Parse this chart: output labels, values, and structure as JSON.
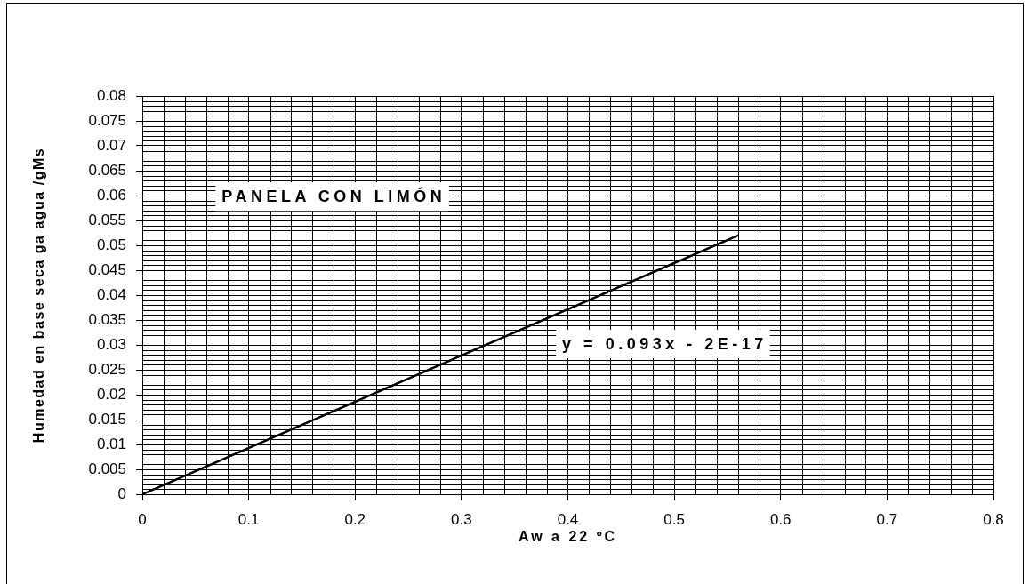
{
  "chart_data": {
    "type": "line",
    "x": [
      0,
      0.56
    ],
    "values": [
      0,
      0.052
    ],
    "color": "#000000",
    "marker": "none",
    "line_style": "solid",
    "xlabel": "Aw a 22 ºC",
    "ylabel": "Humedad en base seca ga agua /gMs",
    "xlim": [
      0,
      0.8
    ],
    "xticks": [
      0,
      0.1,
      0.2,
      0.3,
      0.4,
      0.5,
      0.6,
      0.7,
      0.8
    ],
    "ylim": [
      0,
      0.08
    ],
    "yticks": [
      0,
      0.005,
      0.01,
      0.015,
      0.02,
      0.025,
      0.03,
      0.035,
      0.04,
      0.045,
      0.05,
      0.055,
      0.06,
      0.065,
      0.07,
      0.075,
      0.08
    ],
    "grid": true,
    "annotations": [
      "PANELA CON LIMÓN",
      "y = 0.093x - 2E-17"
    ]
  }
}
